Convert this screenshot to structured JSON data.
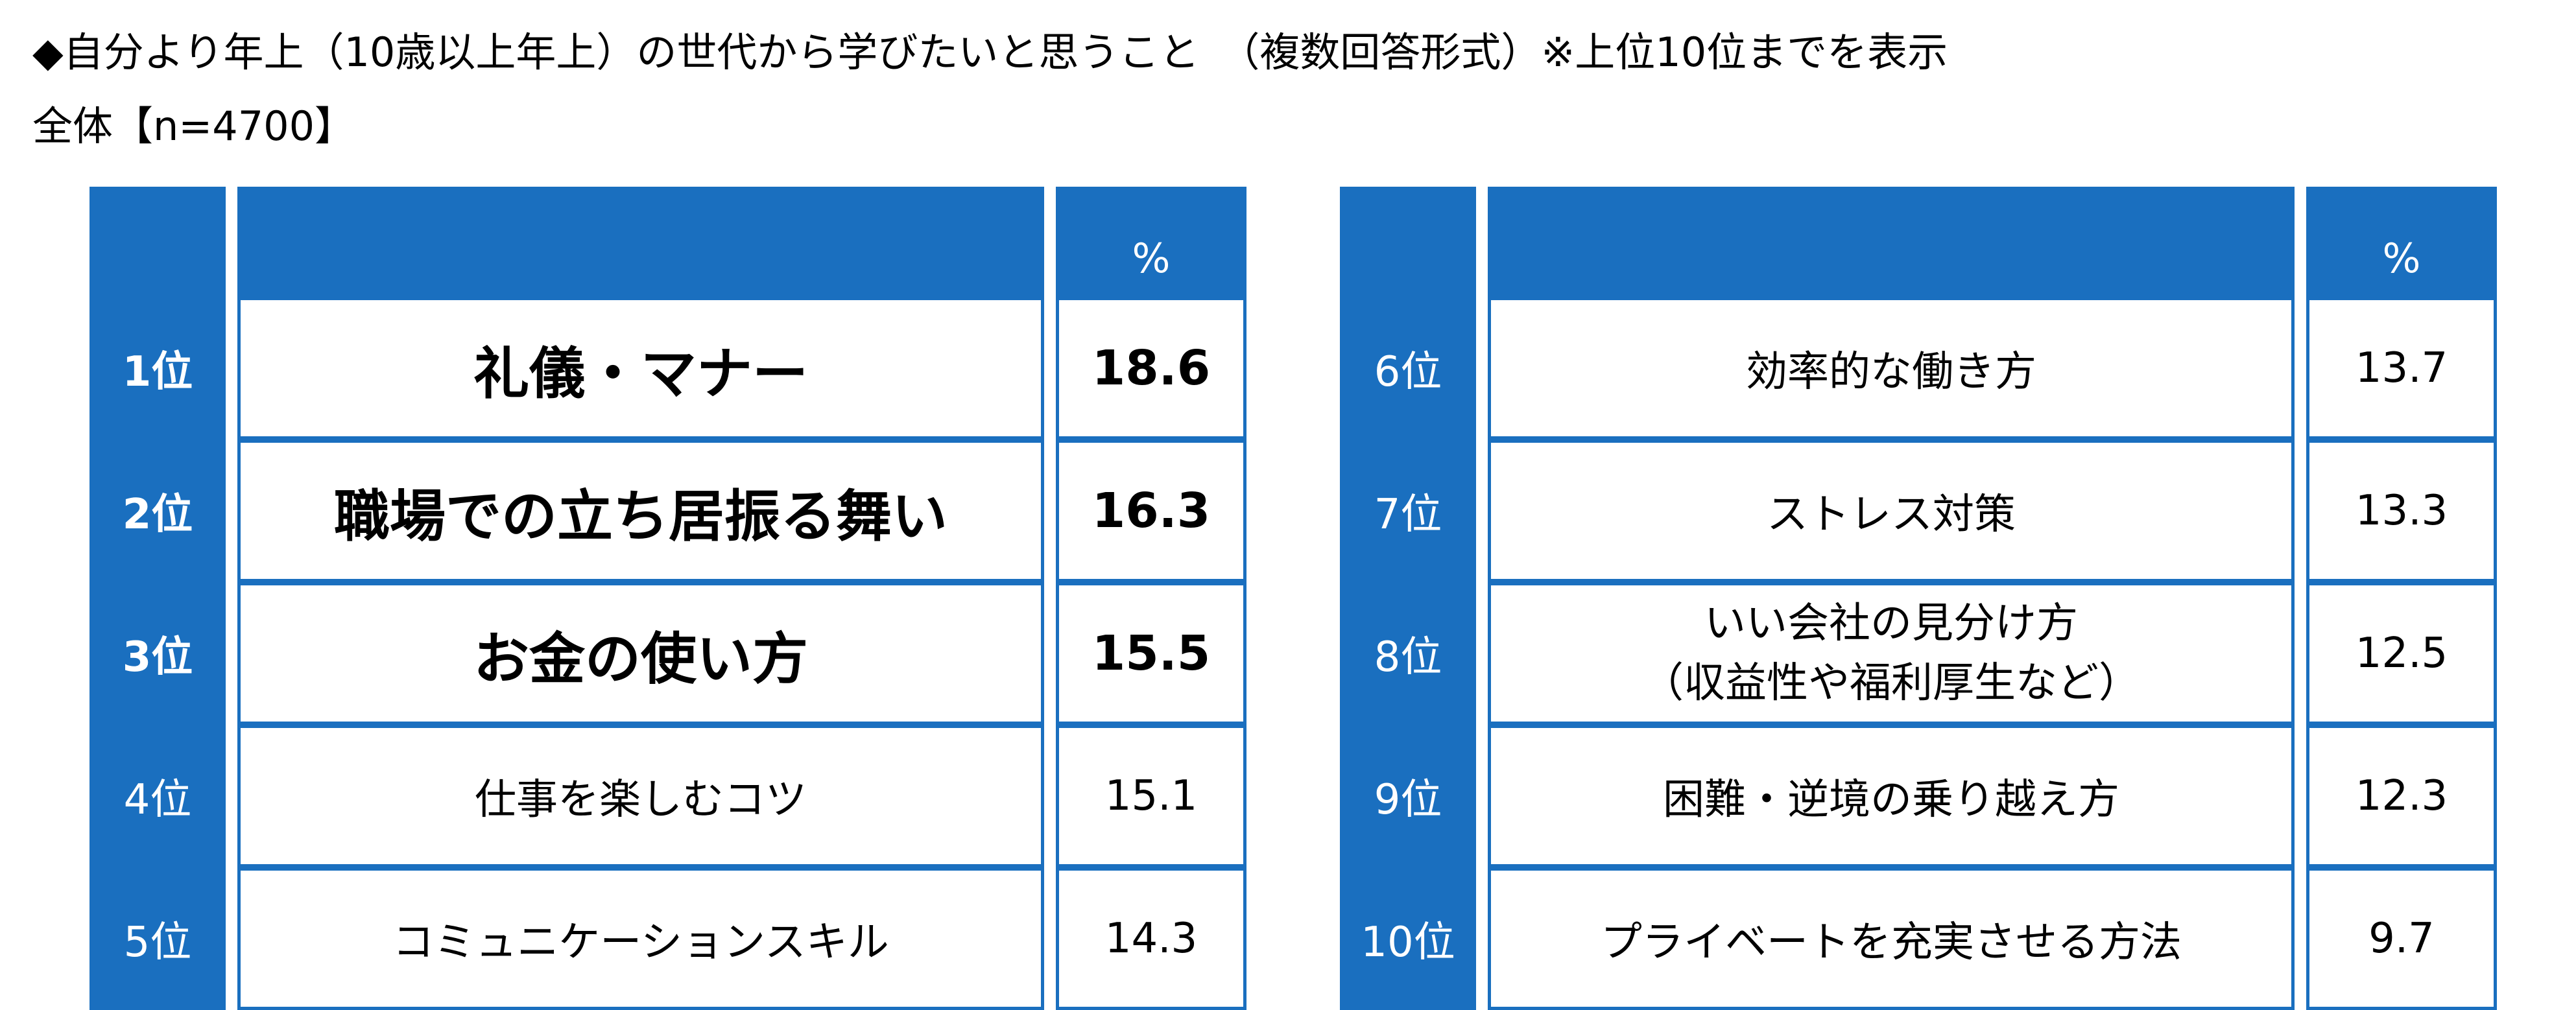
{
  "title": "◆自分より年上（10歳以上年上）の世代から学びたいと思うこと　（複数回答形式）※上位10位までを表示",
  "subtitle": "全体【n=4700】",
  "header": {
    "rank": "",
    "item": "",
    "value": "%"
  },
  "colors": {
    "accent": "#1a6fbf",
    "background": "#ffffff",
    "text": "#000000"
  },
  "chart_data": {
    "type": "table",
    "columns": [
      "",
      "",
      "%"
    ],
    "rows": [
      {
        "rank": "1位",
        "item": "礼儀・マナー",
        "value": "18.6"
      },
      {
        "rank": "2位",
        "item": "職場での立ち居振る舞い",
        "value": "16.3"
      },
      {
        "rank": "3位",
        "item": "お金の使い方",
        "value": "15.5"
      },
      {
        "rank": "4位",
        "item": "仕事を楽しむコツ",
        "value": "15.1"
      },
      {
        "rank": "5位",
        "item": "コミュニケーションスキル",
        "value": "14.3"
      },
      {
        "rank": "6位",
        "item": "効率的な働き方",
        "value": "13.7"
      },
      {
        "rank": "7位",
        "item": "ストレス対策",
        "value": "13.3"
      },
      {
        "rank": "8位",
        "item": "いい会社の見分け方",
        "item_note": "（収益性や福利厚生など）",
        "value": "12.5"
      },
      {
        "rank": "9位",
        "item": "困難・逆境の乗り越え方",
        "value": "12.3"
      },
      {
        "rank": "10位",
        "item": "プライベートを充実させる方法",
        "value": "9.7"
      }
    ]
  }
}
